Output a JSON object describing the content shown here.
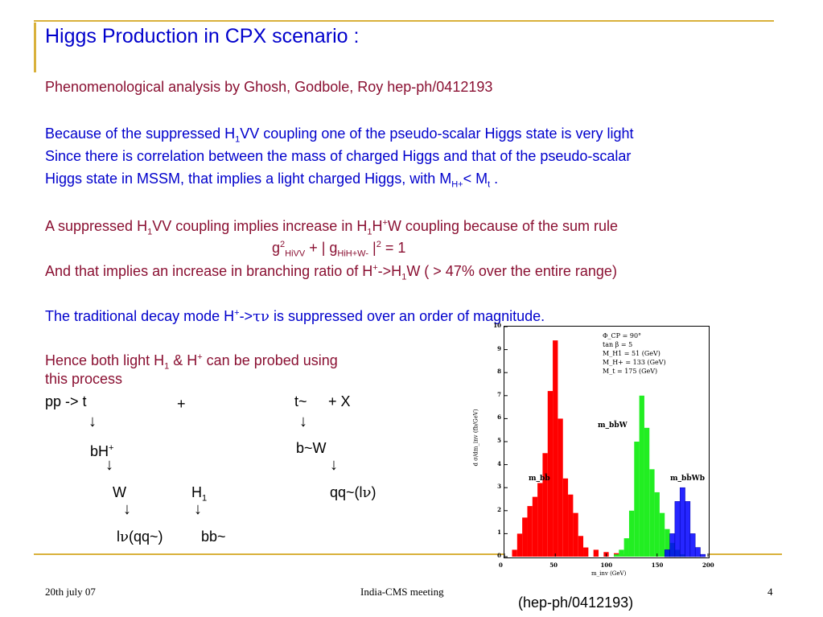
{
  "title": "Higgs Production in CPX scenario :",
  "subtitle": "Phenomenological analysis by Ghosh, Godbole, Roy  hep-ph/0412193",
  "para1": {
    "l1a": "Because of the suppressed H",
    "l1sub": "1",
    "l1b": "VV coupling one of the pseudo-scalar Higgs state is very light",
    "l2": "Since there is correlation between the mass of charged Higgs and that of the pseudo-scalar",
    "l3a": "Higgs state in MSSM, that implies a light charged Higgs, with M",
    "l3sub1": "H+",
    "l3b": "< M",
    "l3sub2": "t",
    "l3c": " ."
  },
  "para2": {
    "l1a": "A suppressed H",
    "l1sub1": "1",
    "l1b": "VV coupling implies increase in H",
    "l1sub2": "1",
    "l1c": "H",
    "l1sup": "+",
    "l1d": "W coupling because of the sum rule",
    "eq_a": "g",
    "eq_sup1": "2",
    "eq_sub1": "HiVV",
    "eq_b": " + | g",
    "eq_sub2": "HiH+W-",
    "eq_c": " |",
    "eq_sup2": "2",
    "eq_d": " = 1",
    "l3a": "And that implies an increase in branching ratio of H",
    "l3sup": "+",
    "l3b": "->H",
    "l3sub": "1",
    "l3c": "W ( > 47% over the entire range)"
  },
  "para3": {
    "a": "The traditional decay mode H",
    "sup": "+",
    "b": "->",
    "greek": "τν",
    "c": "  is suppressed over an order of magnitude."
  },
  "para4": {
    "l1a": "Hence both light H",
    "l1sub": "1",
    "l1b": " & H",
    "l1sup": "+",
    "l1c": " can be probed using",
    "l2": "this process"
  },
  "decay": {
    "pp": "pp -> t",
    "plus1": "+",
    "tbar": "t~",
    "plusx": "+ X",
    "arrow": "↓",
    "bh": "bH",
    "bh_sup": "+",
    "bw": "b~W",
    "w": "W",
    "h1": "H",
    "h1_sub": "1",
    "qq_a": "qq~(l",
    "qq_nu": "ν",
    "qq_b": ")",
    "lnu_a": "l",
    "lnu_nu": "ν",
    "lnu_b": "(qq~)",
    "bb": "bb~"
  },
  "plot": {
    "legend": [
      "Φ_CP = 90°",
      "tan β = 5",
      "M_H1 = 51  (GeV)",
      "M_H+ = 133 (GeV)",
      "M_t = 175 (GeV)"
    ],
    "labels": {
      "mbb": "m_bb̄",
      "mbbw": "m_bb̄W",
      "mbbwb": "m_bb̄Wb"
    },
    "ylabel": "d σ/dm_inv (fb/GeV)",
    "xlabel": "m_inv (GeV)",
    "yticks": [
      "0",
      "1",
      "2",
      "3",
      "4",
      "5",
      "6",
      "7",
      "8",
      "9",
      "10"
    ],
    "xticks": [
      "0",
      "50",
      "100",
      "150",
      "200"
    ],
    "colors": {
      "mbb": "#ff0000",
      "mbbw": "#22ee22",
      "mbbwb": "#0000ff"
    },
    "caption": "(hep-ph/0412193)"
  },
  "chart_data": {
    "type": "bar",
    "xlabel": "m_inv (GeV)",
    "ylabel": "d σ/dm_inv (fb/GeV)",
    "xlim": [
      0,
      200
    ],
    "ylim": [
      0,
      10
    ],
    "series": [
      {
        "name": "m_bb̄",
        "x": [
          10,
          15,
          20,
          25,
          30,
          35,
          40,
          45,
          50,
          55,
          60,
          65,
          70,
          75,
          80,
          90,
          100,
          110,
          120
        ],
        "values": [
          0.3,
          1.0,
          1.7,
          2.2,
          2.6,
          3.2,
          4.5,
          7.2,
          9.4,
          6.0,
          3.4,
          2.7,
          1.9,
          0.9,
          0.4,
          0.3,
          0.2,
          0.15,
          0.1
        ]
      },
      {
        "name": "m_bb̄W",
        "x": [
          110,
          115,
          120,
          125,
          130,
          135,
          140,
          145,
          150,
          155,
          160,
          165,
          170,
          175
        ],
        "values": [
          0.1,
          0.3,
          0.8,
          2.0,
          5.0,
          7.0,
          5.6,
          3.8,
          2.8,
          1.9,
          1.2,
          0.6,
          0.3,
          0.1
        ]
      },
      {
        "name": "m_bb̄Wb",
        "x": [
          160,
          165,
          170,
          175,
          180,
          185,
          190,
          195
        ],
        "values": [
          0.3,
          1.0,
          2.4,
          3.0,
          2.4,
          1.0,
          0.4,
          0.1
        ]
      }
    ]
  },
  "footer": {
    "date": "20th july 07",
    "meeting": "India-CMS meeting",
    "page": "4"
  }
}
